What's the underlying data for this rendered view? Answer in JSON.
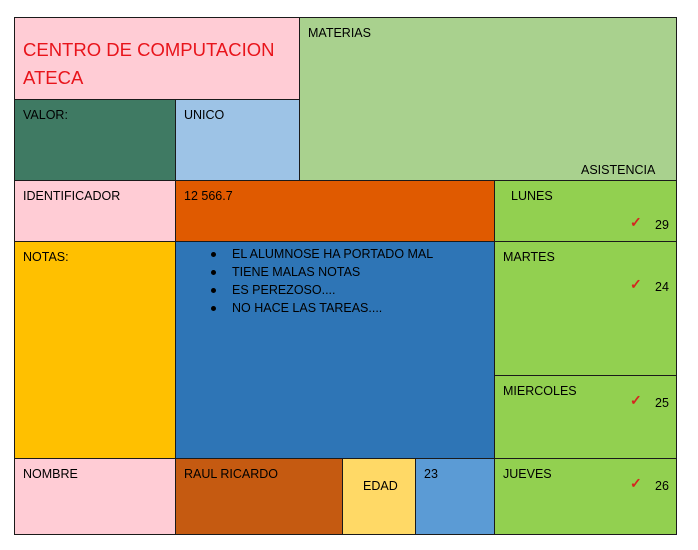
{
  "header": {
    "title_line1": "CENTRO DE COMPUTACION",
    "title_line2": "ATECA",
    "materias": "MATERIAS",
    "asistencia": "ASISTENCIA"
  },
  "valor": {
    "label": "VALOR:",
    "value": "UNICO"
  },
  "identificador": {
    "label": "IDENTIFICADOR",
    "value": "12 566.7"
  },
  "notas": {
    "label": "NOTAS:",
    "items": [
      "EL ALUMNOSE HA PORTADO MAL",
      "TIENE MALAS NOTAS",
      "ES PEREZOSO....",
      "NO HACE LAS TAREAS...."
    ]
  },
  "nombre": {
    "label": "NOMBRE",
    "value": "RAUL RICARDO"
  },
  "edad": {
    "label": "EDAD",
    "value": "23"
  },
  "days": [
    {
      "name": "LUNES",
      "check": "✓",
      "count": "29"
    },
    {
      "name": "MARTES",
      "check": "✓",
      "count": "24"
    },
    {
      "name": "MIERCOLES",
      "check": "✓",
      "count": "25"
    },
    {
      "name": "JUEVES",
      "check": "✓",
      "count": "26"
    }
  ],
  "colors": {
    "pink": "#ffccd5",
    "dark_green": "#3f7a63",
    "light_blue": "#9dc3e6",
    "light_green": "#a9d18e",
    "orange": "#e05a00",
    "yellow": "#ffc000",
    "blue": "#2e75b6",
    "brown": "#c55a11",
    "light_yellow": "#ffd966",
    "mid_blue": "#5b9bd5",
    "green": "#92d050",
    "red_text": "#e8141b"
  }
}
